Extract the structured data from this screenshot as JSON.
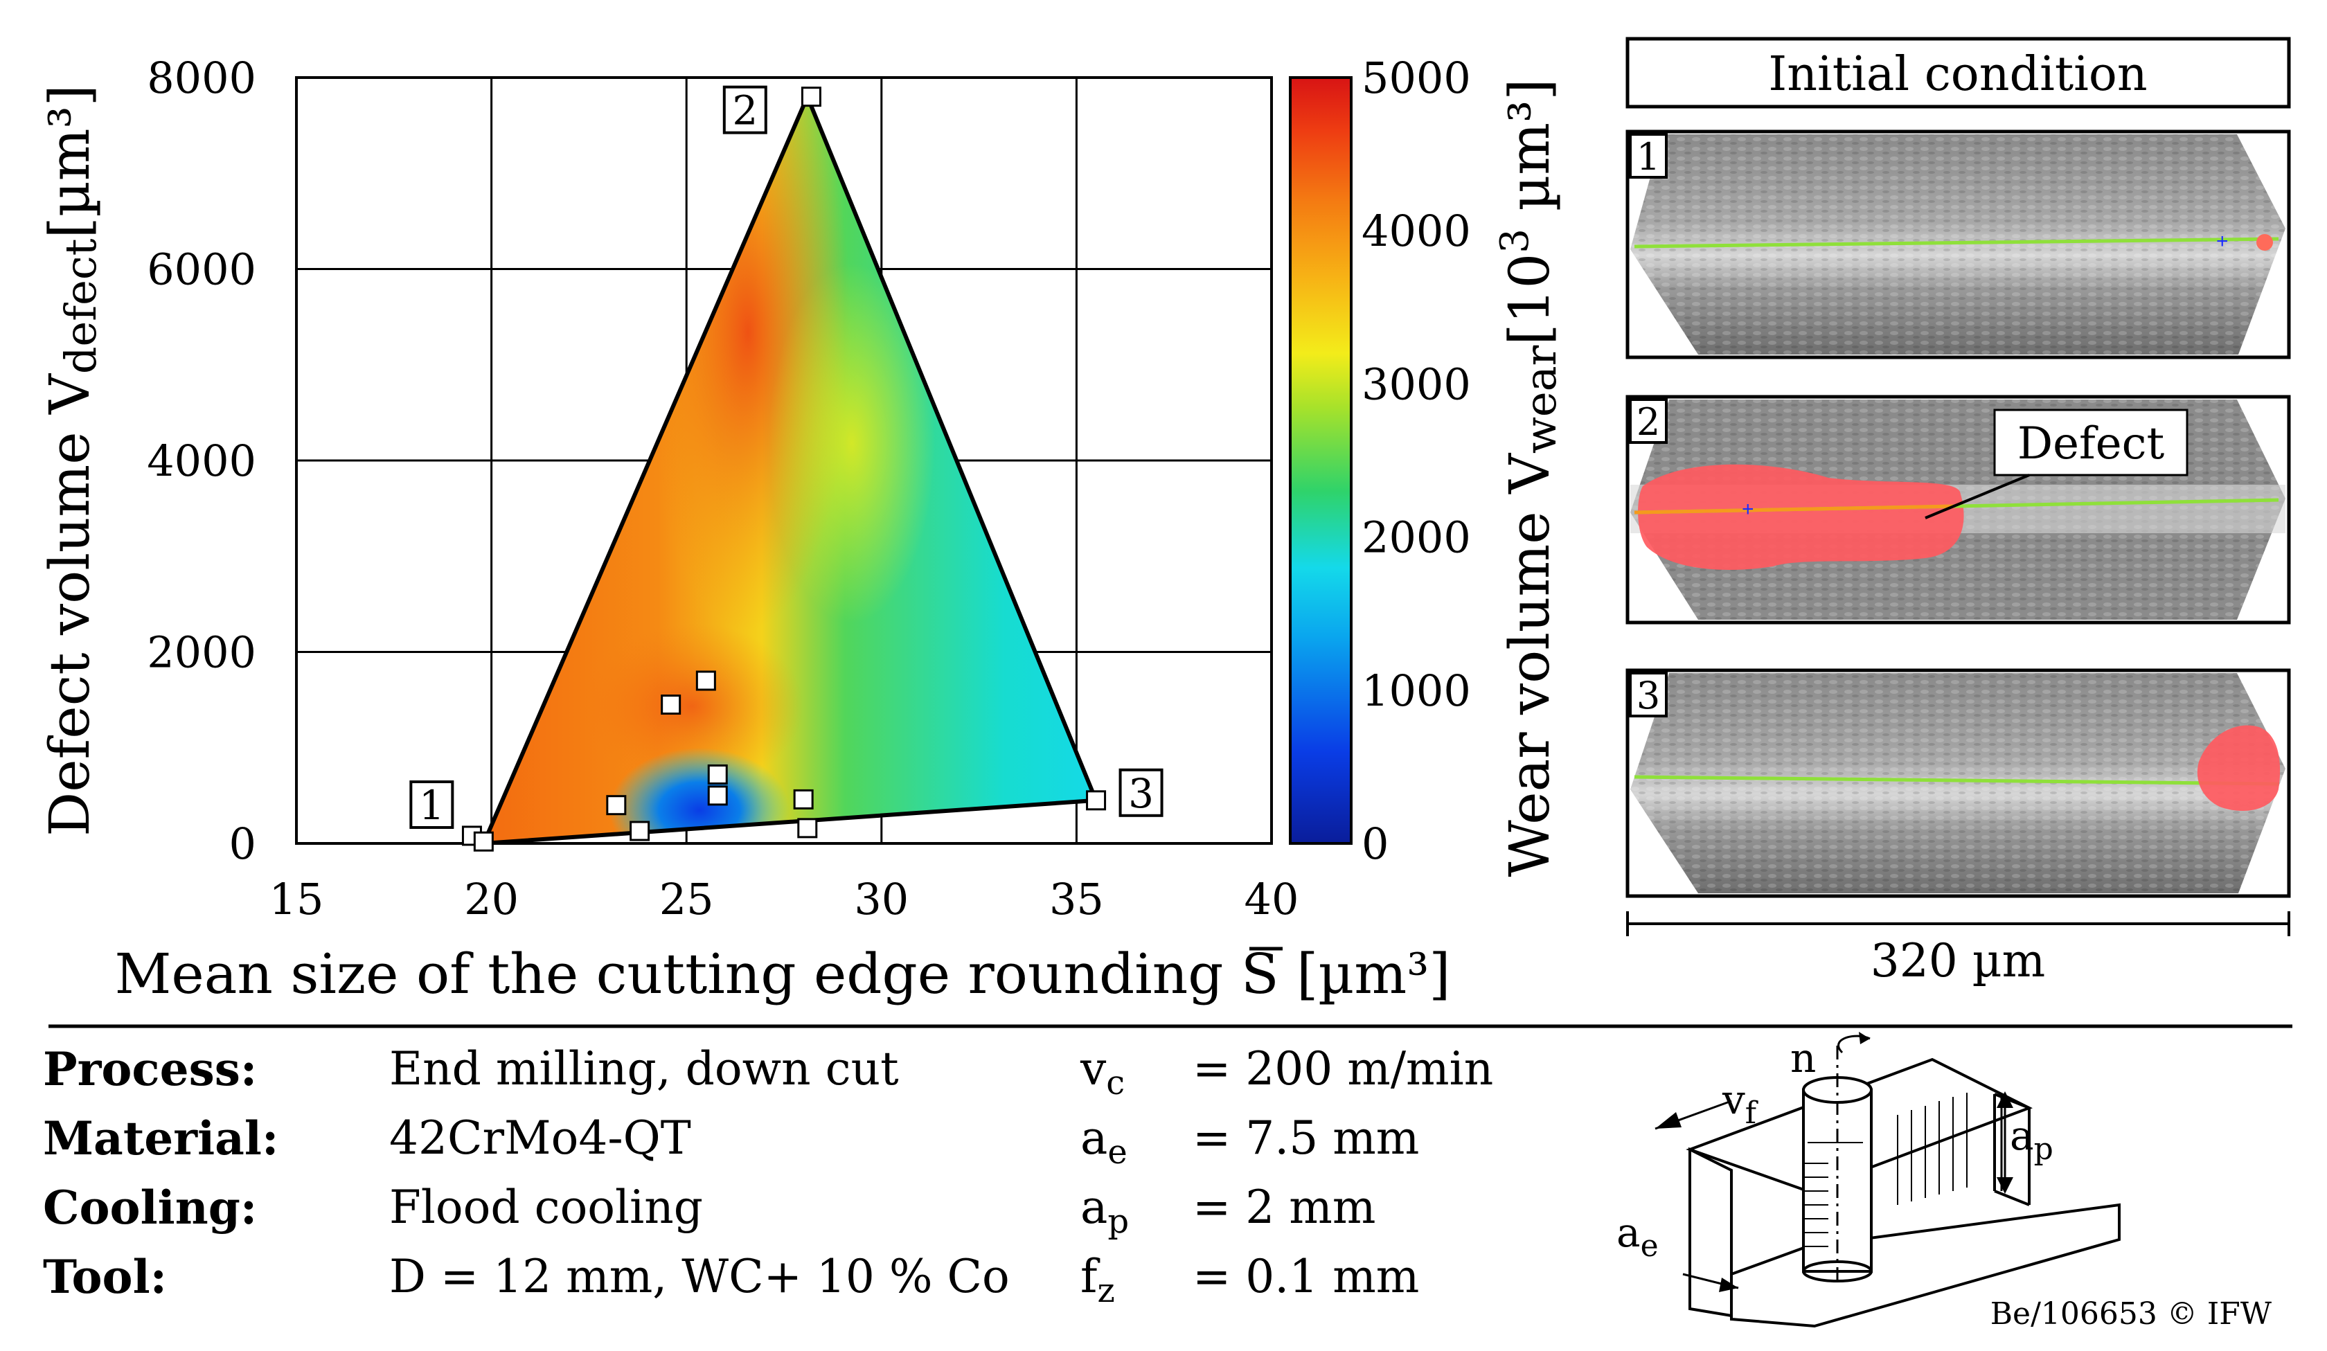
{
  "chart_data": {
    "type": "scatter",
    "subtype": "ternary contour plot with sample points",
    "xlabel": "Mean size of the cutting edge rounding",
    "xlabel_symbol": "S",
    "xlabel_unit": "[µm³]",
    "ylabel": "Defect volume V",
    "ylabel_sub": "defect",
    "ylabel_unit": "[µm³]",
    "xlim": [
      15,
      40
    ],
    "ylim": [
      0,
      8000
    ],
    "x_ticks": [
      "15",
      "20",
      "25",
      "30",
      "35",
      "40"
    ],
    "y_ticks": [
      "0",
      "2000",
      "4000",
      "6000",
      "8000"
    ],
    "grid": true,
    "colorbar": {
      "label": "Wear volume V",
      "label_sub": "wear",
      "label_unit_pre": "[10",
      "label_unit_sup": "3",
      "label_unit_post": " µm³]",
      "range": [
        0,
        5000
      ],
      "ticks": [
        "0",
        "1000",
        "2000",
        "3000",
        "4000",
        "5000"
      ]
    },
    "vertices": [
      {
        "label": "1",
        "x": 19.8,
        "y": 0
      },
      {
        "label": "2",
        "x": 28.1,
        "y": 7800
      },
      {
        "label": "3",
        "x": 35.5,
        "y": 450
      }
    ],
    "points": [
      {
        "x": 19.5,
        "y": 80
      },
      {
        "x": 19.8,
        "y": 20
      },
      {
        "x": 23.2,
        "y": 400
      },
      {
        "x": 23.8,
        "y": 130
      },
      {
        "x": 24.6,
        "y": 1450
      },
      {
        "x": 25.5,
        "y": 1700
      },
      {
        "x": 25.8,
        "y": 720
      },
      {
        "x": 25.8,
        "y": 500
      },
      {
        "x": 28.0,
        "y": 460
      },
      {
        "x": 28.1,
        "y": 160
      },
      {
        "x": 28.2,
        "y": 7800
      },
      {
        "x": 35.5,
        "y": 450
      }
    ]
  },
  "panels": {
    "title": "Initial condition",
    "items": [
      {
        "label": "1"
      },
      {
        "label": "2",
        "callout": "Defect"
      },
      {
        "label": "3"
      }
    ],
    "scale_label": "320 µm"
  },
  "params": {
    "left": [
      {
        "label": "Process:",
        "value": "End milling, down cut"
      },
      {
        "label": "Material:",
        "value": "42CrMo4-QT"
      },
      {
        "label": "Cooling:",
        "value": "Flood cooling"
      },
      {
        "label": "Tool:",
        "value": "D = 12 mm, WC+ 10 % Co"
      }
    ],
    "right": [
      {
        "sym": "v",
        "sub": "c",
        "value": "= 200 m/min"
      },
      {
        "sym": "a",
        "sub": "e",
        "value": "= 7.5 mm"
      },
      {
        "sym": "a",
        "sub": "p",
        "value": "= 2 mm"
      },
      {
        "sym": "f",
        "sub": "z",
        "value": "= 0.1 mm"
      }
    ]
  },
  "sketch": {
    "n": "n",
    "vf": "v",
    "vf_sub": "f",
    "ap": "a",
    "ap_sub": "p",
    "ae": "a",
    "ae_sub": "e"
  },
  "copyright": "Be/106653 © IFW",
  "colors": {
    "red": "#e82418",
    "orange": "#f47a12",
    "yellow": "#f3ec1a",
    "green": "#2fd36a",
    "cyan": "#14d9ea",
    "blue": "#0a3de6"
  }
}
